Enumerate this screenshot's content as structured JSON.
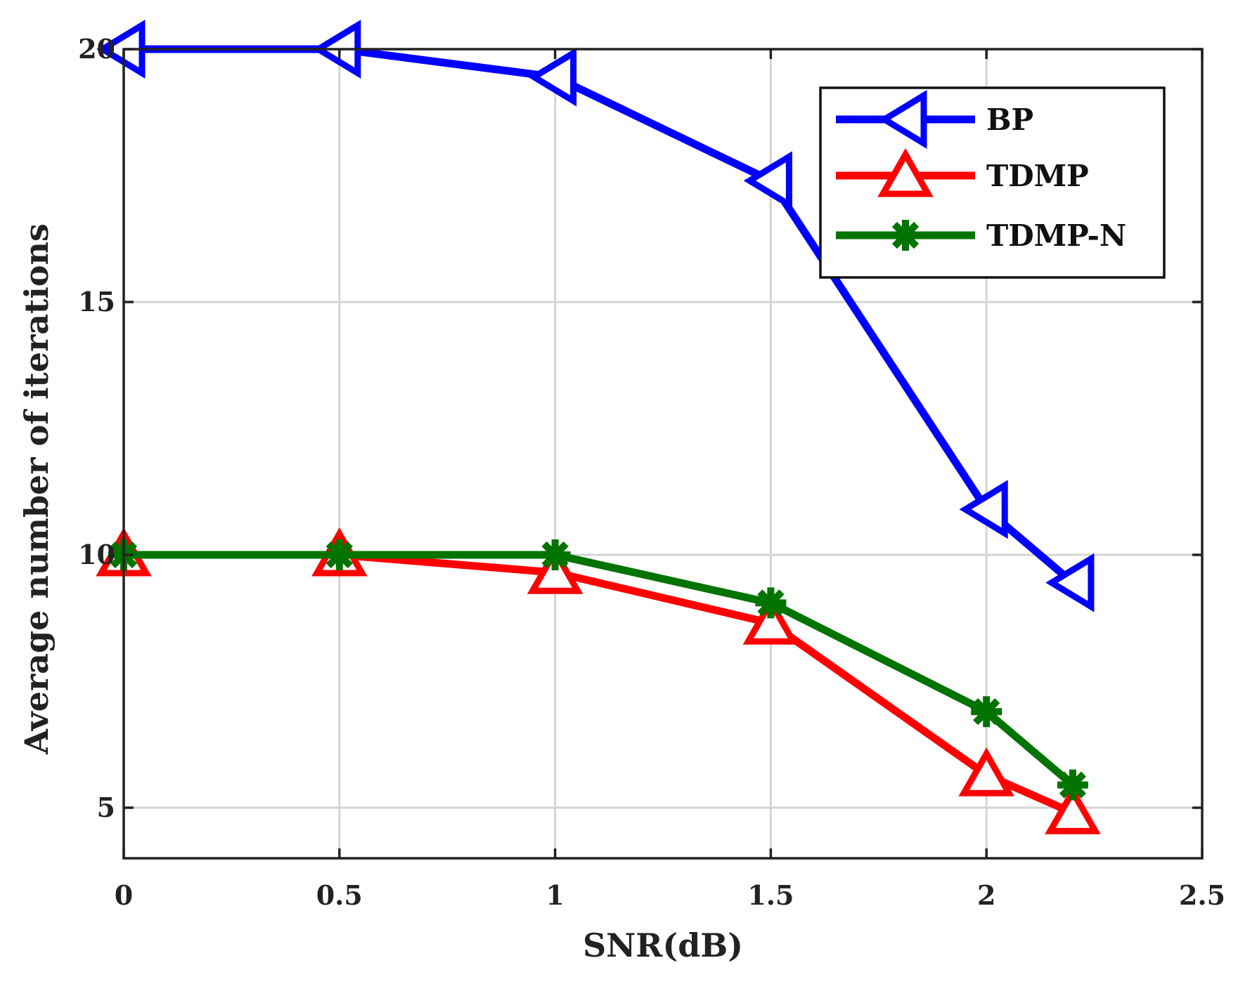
{
  "chart_data": {
    "type": "line",
    "title": "",
    "xlabel": "SNR(dB)",
    "ylabel": "Average number of iterations",
    "xlim": [
      0,
      2.5
    ],
    "ylim": [
      4,
      20
    ],
    "xticks": [
      0,
      0.5,
      1,
      1.5,
      2,
      2.5
    ],
    "xtick_labels": [
      "0",
      "0.5",
      "1",
      "1.5",
      "2",
      "2.5"
    ],
    "yticks": [
      5,
      10,
      15,
      20
    ],
    "ytick_labels": [
      "5",
      "10",
      "15",
      "20"
    ],
    "grid": true,
    "legend_position": "top-right",
    "series": [
      {
        "name": "BP",
        "color": "#0000ff",
        "marker": "triangle-left",
        "x": [
          0,
          0.5,
          1,
          1.5,
          2,
          2.2
        ],
        "values": [
          20,
          20,
          19.45,
          17.4,
          10.9,
          9.45
        ]
      },
      {
        "name": "TDMP",
        "color": "#ff0000",
        "marker": "triangle-up",
        "x": [
          0,
          0.5,
          1,
          1.5,
          2,
          2.2
        ],
        "values": [
          10,
          10,
          9.65,
          8.65,
          5.65,
          4.9
        ]
      },
      {
        "name": "TDMP-N",
        "color": "#007300",
        "marker": "asterisk",
        "x": [
          0,
          0.5,
          1,
          1.5,
          2,
          2.2
        ],
        "values": [
          10,
          10,
          10,
          9.05,
          6.9,
          5.45
        ]
      }
    ]
  }
}
